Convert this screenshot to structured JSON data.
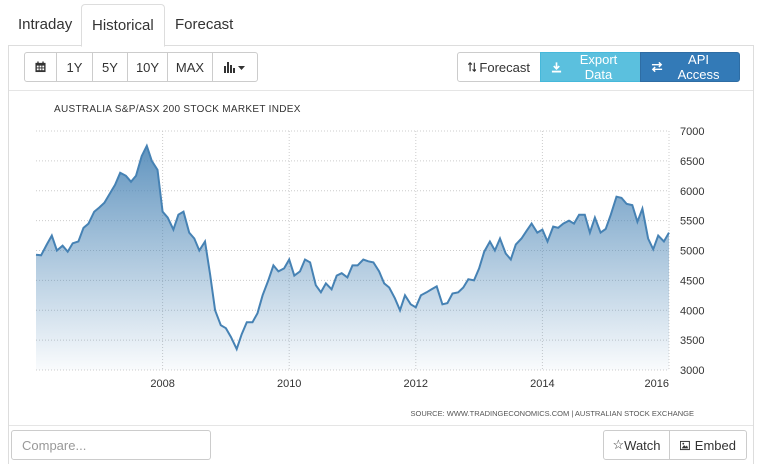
{
  "tabs": [
    {
      "label": "Intraday",
      "active": false
    },
    {
      "label": "Historical",
      "active": true
    },
    {
      "label": "Forecast",
      "active": false
    }
  ],
  "toolbar": {
    "calendar_icon": "calendar-icon",
    "ranges": [
      "1Y",
      "5Y",
      "10Y",
      "MAX"
    ],
    "chart_type_icon": "bar-chart-icon",
    "forecast_label": "Forecast",
    "export_label": "Export Data",
    "api_label": "API Access"
  },
  "bottom": {
    "compare_placeholder": "Compare...",
    "watch_label": "Watch",
    "embed_label": "Embed"
  },
  "colors": {
    "line": "#4682b4",
    "export_button": "#5bc0de",
    "api_button": "#337ab7"
  },
  "chart_data": {
    "type": "area",
    "title": "AUSTRALIA S&P/ASX 200 STOCK MARKET INDEX",
    "source": "SOURCE: WWW.TRADINGECONOMICS.COM | AUSTRALIAN STOCK EXCHANGE",
    "x_ticks": [
      "2008",
      "2010",
      "2012",
      "2014",
      "2016"
    ],
    "y_ticks": [
      "3000",
      "3500",
      "4000",
      "4500",
      "5000",
      "5500",
      "6000",
      "6500",
      "7000"
    ],
    "xlim": [
      2006.0,
      2016.0
    ],
    "ylim": [
      3000,
      7000
    ],
    "grid": true,
    "x": [
      2006.0,
      2006.08,
      2006.17,
      2006.25,
      2006.33,
      2006.42,
      2006.5,
      2006.58,
      2006.67,
      2006.75,
      2006.83,
      2006.92,
      2007.0,
      2007.08,
      2007.17,
      2007.25,
      2007.33,
      2007.42,
      2007.5,
      2007.58,
      2007.67,
      2007.75,
      2007.83,
      2007.92,
      2008.0,
      2008.08,
      2008.17,
      2008.25,
      2008.33,
      2008.42,
      2008.5,
      2008.58,
      2008.67,
      2008.75,
      2008.83,
      2008.92,
      2009.0,
      2009.08,
      2009.17,
      2009.25,
      2009.33,
      2009.42,
      2009.5,
      2009.58,
      2009.67,
      2009.75,
      2009.83,
      2009.92,
      2010.0,
      2010.08,
      2010.17,
      2010.25,
      2010.33,
      2010.42,
      2010.5,
      2010.58,
      2010.67,
      2010.75,
      2010.83,
      2010.92,
      2011.0,
      2011.08,
      2011.17,
      2011.25,
      2011.33,
      2011.42,
      2011.5,
      2011.58,
      2011.67,
      2011.75,
      2011.83,
      2011.92,
      2012.0,
      2012.08,
      2012.17,
      2012.25,
      2012.33,
      2012.42,
      2012.5,
      2012.58,
      2012.67,
      2012.75,
      2012.83,
      2012.92,
      2013.0,
      2013.08,
      2013.17,
      2013.25,
      2013.33,
      2013.42,
      2013.5,
      2013.58,
      2013.67,
      2013.75,
      2013.83,
      2013.92,
      2014.0,
      2014.08,
      2014.17,
      2014.25,
      2014.33,
      2014.42,
      2014.5,
      2014.58,
      2014.67,
      2014.75,
      2014.83,
      2014.92,
      2015.0,
      2015.08,
      2015.17,
      2015.25,
      2015.33,
      2015.42,
      2015.5,
      2015.58,
      2015.67,
      2015.75,
      2015.83,
      2015.92,
      2016.0
    ],
    "series": [
      {
        "values": [
          4930,
          4920,
          5100,
          5250,
          5000,
          5080,
          4980,
          5120,
          5150,
          5380,
          5450,
          5650,
          5720,
          5800,
          5960,
          6100,
          6300,
          6250,
          6150,
          6250,
          6580,
          6750,
          6500,
          6350,
          5650,
          5550,
          5350,
          5600,
          5650,
          5300,
          5200,
          5000,
          5150,
          4600,
          4000,
          3750,
          3700,
          3550,
          3350,
          3600,
          3800,
          3800,
          3950,
          4250,
          4500,
          4750,
          4650,
          4700,
          4850,
          4580,
          4650,
          4850,
          4800,
          4420,
          4300,
          4450,
          4350,
          4580,
          4620,
          4550,
          4750,
          4750,
          4850,
          4820,
          4800,
          4650,
          4450,
          4380,
          4200,
          4000,
          4250,
          4100,
          4050,
          4250,
          4300,
          4350,
          4400,
          4100,
          4120,
          4280,
          4300,
          4380,
          4520,
          4500,
          4700,
          4980,
          5150,
          5000,
          5200,
          4950,
          4850,
          5100,
          5200,
          5330,
          5450,
          5300,
          5350,
          5150,
          5400,
          5380,
          5450,
          5500,
          5450,
          5600,
          5600,
          5300,
          5550,
          5300,
          5360,
          5600,
          5900,
          5880,
          5780,
          5760,
          5480,
          5700,
          5200,
          5020,
          5250,
          5150,
          5300
        ]
      }
    ]
  }
}
